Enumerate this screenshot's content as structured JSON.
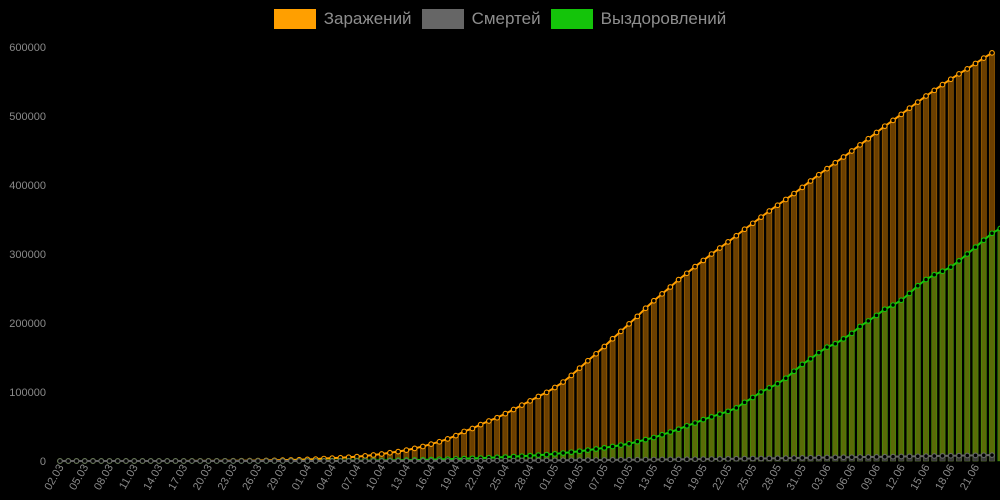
{
  "chart_data": {
    "type": "bar",
    "legend_position": "top-center",
    "grid": false,
    "ylim": [
      0,
      600000
    ],
    "y_ticks": [
      "0",
      "100000",
      "200000",
      "300000",
      "400000",
      "500000",
      "600000"
    ],
    "x_tick_labels": [
      "02.03",
      "05.03",
      "08.03",
      "11.03",
      "14.03",
      "17.03",
      "20.03",
      "23.03",
      "26.03",
      "29.03",
      "01.04",
      "04.04",
      "07.04",
      "10.04",
      "13.04",
      "16.04",
      "19.04",
      "22.04",
      "25.04",
      "28.04",
      "01.05",
      "04.05",
      "07.05",
      "10.05",
      "13.05",
      "16.05",
      "19.05",
      "22.05",
      "25.05",
      "28.05",
      "31.05",
      "03.06",
      "06.06",
      "09.06",
      "12.06",
      "15.06",
      "18.06",
      "21.06"
    ],
    "series": [
      {
        "name": "Заражений",
        "color": "#ff9f00",
        "fill": "#6b3f00",
        "values": [
          3,
          3,
          3,
          3,
          4,
          4,
          10,
          13,
          17,
          20,
          28,
          34,
          45,
          59,
          63,
          90,
          114,
          147,
          199,
          253,
          306,
          367,
          438,
          495,
          658,
          840,
          1036,
          1264,
          1534,
          1836,
          2337,
          2777,
          3548,
          4149,
          4731,
          5389,
          6343,
          7497,
          8672,
          10131,
          11917,
          13584,
          15770,
          18328,
          21102,
          24490,
          27938,
          32008,
          36793,
          42853,
          47121,
          52763,
          57999,
          62773,
          68622,
          74588,
          80949,
          87147,
          93558,
          99399,
          106498,
          114431,
          124054,
          134687,
          145268,
          155370,
          165929,
          177160,
          187859,
          198676,
          209688,
          221344,
          232243,
          242271,
          252245,
          262843,
          272043,
          281752,
          290678,
          299941,
          308705,
          317554,
          326448,
          335882,
          344481,
          353427,
          362342,
          370680,
          379051,
          387623,
          396575,
          405843,
          414878,
          423741,
          432277,
          440538,
          449256,
          458102,
          467073,
          476043,
          485253,
          493657,
          502436,
          511423,
          520129,
          528964,
          537210,
          545458,
          553301,
          561091,
          568292,
          576162,
          583879,
          591465
        ]
      },
      {
        "name": "Смертей",
        "color": "#666666",
        "fill": "#3a3a3a",
        "values": [
          0,
          0,
          0,
          0,
          0,
          0,
          0,
          0,
          0,
          0,
          0,
          0,
          0,
          0,
          0,
          0,
          0,
          0,
          1,
          1,
          1,
          1,
          1,
          1,
          1,
          2,
          2,
          3,
          4,
          4,
          8,
          9,
          17,
          24,
          30,
          34,
          43,
          47,
          58,
          63,
          76,
          94,
          106,
          130,
          148,
          170,
          198,
          232,
          273,
          313,
          361,
          405,
          456,
          513,
          555,
          615,
          681,
          747,
          794,
          867,
          972,
          1073,
          1169,
          1280,
          1356,
          1451,
          1537,
          1625,
          1723,
          1827,
          1915,
          2009,
          2116,
          2212,
          2305,
          2418,
          2537,
          2631,
          2722,
          2837,
          2972,
          3099,
          3249,
          3388,
          3541,
          3633,
          3807,
          3968,
          4142,
          4374,
          4555,
          4693,
          4855,
          5037,
          5215,
          5405,
          5520,
          5725,
          5859,
          5971,
          6142,
          6358,
          6532,
          6715,
          6829,
          7091,
          7284,
          7478,
          7650,
          7843,
          7992,
          8206,
          8359,
          8501
        ]
      },
      {
        "name": "Выздоровлений",
        "color": "#14c40a",
        "fill": "#5a6b08",
        "values": [
          0,
          0,
          0,
          0,
          0,
          0,
          0,
          0,
          0,
          1,
          1,
          1,
          2,
          2,
          4,
          8,
          10,
          12,
          14,
          16,
          22,
          26,
          32,
          38,
          45,
          50,
          58,
          64,
          80,
          120,
          170,
          230,
          290,
          340,
          400,
          460,
          520,
          600,
          700,
          820,
          950,
          1100,
          1300,
          1500,
          1700,
          2000,
          2300,
          2600,
          3000,
          3400,
          3800,
          4200,
          4700,
          5200,
          5700,
          6300,
          7000,
          7700,
          8500,
          9300,
          10300,
          11500,
          12800,
          14200,
          15800,
          17400,
          19100,
          21000,
          23000,
          25000,
          28000,
          31000,
          34000,
          38000,
          42000,
          46000,
          51000,
          55000,
          60000,
          64000,
          68000,
          72000,
          77000,
          85000,
          92000,
          100000,
          106000,
          112000,
          120000,
          130000,
          140000,
          148000,
          157000,
          165000,
          170000,
          177000,
          185000,
          195000,
          203000,
          211000,
          220000,
          226000,
          233000,
          243000,
          254000,
          263000,
          270000,
          275000,
          281000,
          290000,
          300000,
          310000,
          320000,
          330000,
          337000,
          344000
        ]
      }
    ]
  }
}
